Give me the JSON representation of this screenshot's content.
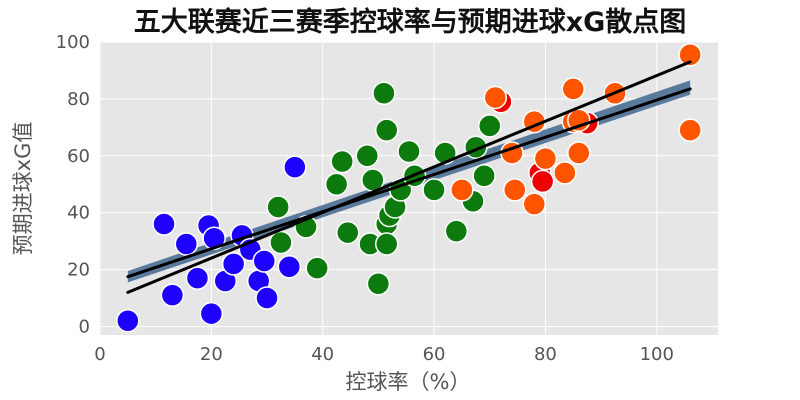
{
  "chart_data": {
    "type": "scatter",
    "title": "五大联赛近三赛季控球率与预期进球xG散点图",
    "xlabel": "控球率（%）",
    "ylabel": "预期进球xG值",
    "xlim": [
      0,
      111
    ],
    "ylim": [
      -3,
      100
    ],
    "xticks": [
      0,
      20,
      40,
      60,
      80,
      100
    ],
    "yticks": [
      0,
      20,
      40,
      60,
      80,
      100
    ],
    "grid": true,
    "colors": {
      "background": "#e6e6e6",
      "grid": "#ffffff",
      "band": "#4a6e94",
      "fit_line": "#000000",
      "blue": "#1e00ff",
      "green": "#0d7a0d",
      "orange": "#ff5500",
      "red": "#ee0000"
    },
    "series": [
      {
        "color": "blue",
        "points": [
          [
            5,
            2
          ],
          [
            11.5,
            36
          ],
          [
            13,
            11
          ],
          [
            15.5,
            29
          ],
          [
            17.5,
            17
          ],
          [
            19.5,
            35.5
          ],
          [
            20,
            4.5
          ],
          [
            20.5,
            31
          ],
          [
            22.5,
            16
          ],
          [
            24,
            22
          ],
          [
            25.5,
            32
          ],
          [
            27,
            27
          ],
          [
            28.5,
            16
          ],
          [
            29.5,
            23
          ],
          [
            30,
            10
          ],
          [
            34,
            21
          ],
          [
            35,
            56
          ]
        ]
      },
      {
        "color": "green",
        "points": [
          [
            32,
            42
          ],
          [
            32.5,
            29.5
          ],
          [
            37,
            35
          ],
          [
            39,
            20.5
          ],
          [
            42.5,
            50
          ],
          [
            43.5,
            58
          ],
          [
            44.5,
            33
          ],
          [
            48,
            60
          ],
          [
            48.5,
            29
          ],
          [
            49,
            51.5
          ],
          [
            50,
            15
          ],
          [
            51,
            82
          ],
          [
            51.5,
            69
          ],
          [
            51.5,
            36
          ],
          [
            51.5,
            29
          ],
          [
            52,
            39
          ],
          [
            53,
            42
          ],
          [
            54,
            48
          ],
          [
            55.5,
            61.5
          ],
          [
            56.5,
            53
          ],
          [
            60,
            48
          ],
          [
            62,
            61
          ],
          [
            64,
            33.5
          ],
          [
            67,
            44
          ],
          [
            67.5,
            63
          ],
          [
            69,
            53
          ],
          [
            70,
            70.5
          ]
        ]
      },
      {
        "color": "red",
        "points": [
          [
            72,
            79
          ],
          [
            79,
            54
          ],
          [
            79.5,
            51
          ],
          [
            87.5,
            71.5
          ]
        ]
      },
      {
        "color": "orange",
        "points": [
          [
            65,
            48
          ],
          [
            71,
            80.5
          ],
          [
            74,
            61
          ],
          [
            74.5,
            48
          ],
          [
            78,
            72
          ],
          [
            78,
            43
          ],
          [
            80,
            59
          ],
          [
            83.5,
            54
          ],
          [
            85,
            83.5
          ],
          [
            85,
            72
          ],
          [
            86,
            61
          ],
          [
            86,
            72.5
          ],
          [
            92.5,
            82
          ],
          [
            106,
            95.5
          ],
          [
            106,
            69
          ]
        ]
      }
    ],
    "fit_lines": [
      [
        [
          5,
          17.5
        ],
        [
          106,
          83.5
        ]
      ],
      [
        [
          5,
          12
        ],
        [
          106,
          93
        ]
      ]
    ],
    "band": {
      "x": [
        5,
        106
      ],
      "upper": [
        19.5,
        86.5
      ],
      "lower": [
        15.5,
        81.5
      ]
    }
  }
}
